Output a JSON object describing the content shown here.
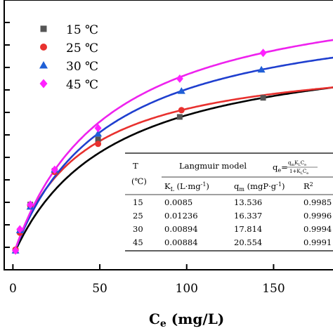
{
  "chart_data": {
    "type": "scatter",
    "title": "",
    "xlabel": "C",
    "xlabel_sub": "e",
    "xlabel_unit": " (mg/L)",
    "ylabel": "",
    "xlim": [
      -5,
      185
    ],
    "ylim": [
      0,
      24
    ],
    "xticks": [
      0,
      50,
      100,
      150
    ],
    "legend_position": "top-left",
    "series": [
      {
        "name": "15 ℃",
        "marker": "square",
        "color": "#555555",
        "fit_color": "#000000",
        "fit": {
          "qm": 13.536,
          "KL": 0.0085
        },
        "points": [
          [
            1.5,
            1.7
          ],
          [
            4,
            3.4
          ],
          [
            10,
            5.8
          ],
          [
            24,
            8.8
          ],
          [
            49,
            11.6
          ],
          [
            96,
            13.6
          ],
          [
            144,
            15.3
          ]
        ]
      },
      {
        "name": "25 ℃",
        "marker": "circle",
        "color": "#e8312f",
        "fit_color": "#e8312f",
        "fit": {
          "qm": 16.337,
          "KL": 0.01236
        },
        "points": [
          [
            1.5,
            1.8
          ],
          [
            4,
            3.3
          ],
          [
            10,
            5.7
          ],
          [
            24,
            8.7
          ],
          [
            49,
            11.2
          ],
          [
            97,
            14.2
          ]
        ]
      },
      {
        "name": "30 ℃",
        "marker": "triangle",
        "color": "#1f5fd6",
        "fit_color": "#1f3fcf",
        "fit": {
          "qm": 17.814,
          "KL": 0.00894
        },
        "points": [
          [
            1.5,
            1.7
          ],
          [
            4,
            3.5
          ],
          [
            10,
            5.6
          ],
          [
            24,
            8.9
          ],
          [
            49,
            12.1
          ],
          [
            97,
            15.9
          ],
          [
            143,
            17.8
          ]
        ]
      },
      {
        "name": "45 ℃",
        "marker": "diamond",
        "color": "#ff22ff",
        "fit_color": "#ee22ee",
        "fit": {
          "qm": 20.554,
          "KL": 0.00884
        },
        "points": [
          [
            1.5,
            1.7
          ],
          [
            4,
            3.6
          ],
          [
            10,
            5.8
          ],
          [
            24,
            8.9
          ],
          [
            49,
            12.6
          ],
          [
            96,
            17.0
          ],
          [
            144,
            19.3
          ]
        ]
      }
    ],
    "table": {
      "col_T": "T",
      "col_T_unit": "(℃)",
      "model_title": "Langmuir model",
      "equation_lhs": "q",
      "equation_lhs_sub": "e",
      "equation_numerator": "q",
      "equation_numerator_sub": "m",
      "equation_numerator_rest": "K",
      "equation_numerator_rest_sub": "L",
      "equation_numerator_tail": "C",
      "equation_numerator_tail_sub": "e",
      "equation_denominator": "1+K",
      "equation_denominator_sub": "L",
      "equation_denominator_tail": "C",
      "equation_denominator_tail_sub": "e",
      "col_KL": "K",
      "col_KL_sub": "L",
      "col_KL_unit": " (L·mg",
      "col_KL_unit_sup": "-1",
      "col_KL_unit_end": ")",
      "col_qm": "q",
      "col_qm_sub": "m",
      "col_qm_unit": " (mgP·g",
      "col_qm_unit_sup": "-1",
      "col_qm_unit_end": ")",
      "col_R2": "R",
      "col_R2_sup": "2",
      "rows": [
        {
          "T": "15",
          "KL": "0.0085",
          "qm": "13.536",
          "R2": "0.9985"
        },
        {
          "T": "25",
          "KL": "0.01236",
          "qm": "16.337",
          "R2": "0.9996"
        },
        {
          "T": "30",
          "KL": "0.00894",
          "qm": "17.814",
          "R2": "0.9994"
        },
        {
          "T": "45",
          "KL": "0.00884",
          "qm": "20.554",
          "R2": "0.9991"
        }
      ]
    }
  }
}
